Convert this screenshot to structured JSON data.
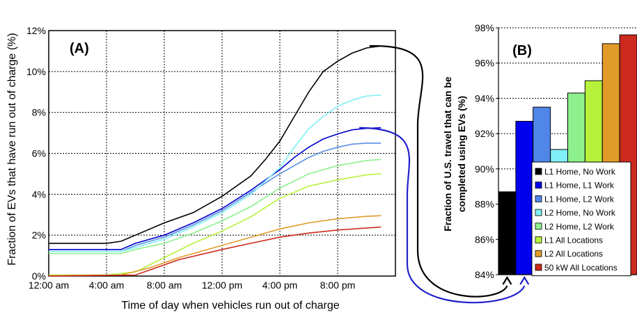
{
  "chart_data": [
    {
      "type": "line",
      "panel_label": "(A)",
      "xlabel": "Time of day when vehicles run out of charge",
      "ylabel": "Fraction of EVs that have run out of charge (%)",
      "x_tick_labels": [
        "12:00 am",
        "4:00 am",
        "8:00 am",
        "12:00 pm",
        "4:00 pm",
        "8:00 pm"
      ],
      "y_tick_labels": [
        "0%",
        "2%",
        "4%",
        "6%",
        "8%",
        "10%",
        "12%"
      ],
      "x_unit": "hour of day",
      "xlim": [
        0,
        24
      ],
      "ylim": [
        0,
        12
      ],
      "grid": true,
      "series": [
        {
          "name": "L1 Home, No Work",
          "color": "#000000",
          "points": [
            [
              0,
              1.6
            ],
            [
              4,
              1.6
            ],
            [
              5,
              1.7
            ],
            [
              6,
              2.0
            ],
            [
              8,
              2.6
            ],
            [
              10,
              3.1
            ],
            [
              12,
              3.9
            ],
            [
              14,
              4.9
            ],
            [
              15,
              5.7
            ],
            [
              16,
              6.6
            ],
            [
              17,
              7.8
            ],
            [
              18,
              9.0
            ],
            [
              19,
              10.0
            ],
            [
              20,
              10.5
            ],
            [
              21,
              10.9
            ],
            [
              22,
              11.15
            ],
            [
              23,
              11.25
            ]
          ]
        },
        {
          "name": "L1 Home, L1 Work",
          "color": "#0000cc",
          "points": [
            [
              0,
              1.3
            ],
            [
              5,
              1.3
            ],
            [
              6,
              1.6
            ],
            [
              8,
              2.0
            ],
            [
              10,
              2.6
            ],
            [
              12,
              3.3
            ],
            [
              14,
              4.2
            ],
            [
              16,
              5.2
            ],
            [
              17,
              5.8
            ],
            [
              18,
              6.3
            ],
            [
              19,
              6.7
            ],
            [
              20,
              6.95
            ],
            [
              21,
              7.15
            ],
            [
              22,
              7.22
            ],
            [
              23,
              7.25
            ]
          ]
        },
        {
          "name": "L1 Home, L2 Work",
          "color": "#5b8ee6",
          "points": [
            [
              0,
              1.2
            ],
            [
              5,
              1.2
            ],
            [
              6,
              1.5
            ],
            [
              8,
              1.9
            ],
            [
              10,
              2.5
            ],
            [
              12,
              3.2
            ],
            [
              14,
              4.1
            ],
            [
              16,
              5.0
            ],
            [
              17,
              5.4
            ],
            [
              18,
              5.8
            ],
            [
              19,
              6.1
            ],
            [
              20,
              6.3
            ],
            [
              21,
              6.45
            ],
            [
              22,
              6.5
            ],
            [
              23,
              6.5
            ]
          ]
        },
        {
          "name": "L2 Home, No Work",
          "color": "#7ff0f5",
          "points": [
            [
              0,
              1.2
            ],
            [
              5,
              1.2
            ],
            [
              6,
              1.4
            ],
            [
              8,
              1.8
            ],
            [
              10,
              2.4
            ],
            [
              12,
              3.1
            ],
            [
              14,
              4.0
            ],
            [
              16,
              5.3
            ],
            [
              17,
              6.3
            ],
            [
              18,
              7.2
            ],
            [
              19,
              7.8
            ],
            [
              20,
              8.3
            ],
            [
              21,
              8.6
            ],
            [
              22,
              8.8
            ],
            [
              23,
              8.85
            ]
          ]
        },
        {
          "name": "L2 Home, L2 Work",
          "color": "#8cf08c",
          "points": [
            [
              0,
              1.1
            ],
            [
              5,
              1.1
            ],
            [
              6,
              1.3
            ],
            [
              8,
              1.6
            ],
            [
              10,
              2.1
            ],
            [
              12,
              2.7
            ],
            [
              14,
              3.4
            ],
            [
              16,
              4.3
            ],
            [
              18,
              5.0
            ],
            [
              20,
              5.4
            ],
            [
              22,
              5.65
            ],
            [
              23,
              5.7
            ]
          ]
        },
        {
          "name": "L1 All Locations",
          "color": "#b6f23c",
          "points": [
            [
              0,
              0.05
            ],
            [
              4,
              0.05
            ],
            [
              6,
              0.2
            ],
            [
              8,
              0.9
            ],
            [
              10,
              1.6
            ],
            [
              12,
              2.2
            ],
            [
              14,
              2.9
            ],
            [
              16,
              3.8
            ],
            [
              18,
              4.4
            ],
            [
              20,
              4.7
            ],
            [
              22,
              4.95
            ],
            [
              23,
              5.0
            ]
          ]
        },
        {
          "name": "L2 All Locations",
          "color": "#e19b28",
          "points": [
            [
              0,
              0.02
            ],
            [
              5,
              0.05
            ],
            [
              7,
              0.4
            ],
            [
              9,
              0.9
            ],
            [
              12,
              1.5
            ],
            [
              14,
              1.9
            ],
            [
              16,
              2.3
            ],
            [
              18,
              2.6
            ],
            [
              20,
              2.8
            ],
            [
              22,
              2.92
            ],
            [
              23,
              2.95
            ]
          ]
        },
        {
          "name": "50 kW All Locations",
          "color": "#cc2a1e",
          "points": [
            [
              0,
              0.0
            ],
            [
              6,
              0.05
            ],
            [
              7,
              0.3
            ],
            [
              9,
              0.8
            ],
            [
              12,
              1.3
            ],
            [
              14,
              1.6
            ],
            [
              16,
              1.9
            ],
            [
              18,
              2.1
            ],
            [
              20,
              2.25
            ],
            [
              22,
              2.35
            ],
            [
              23,
              2.4
            ]
          ]
        }
      ]
    },
    {
      "type": "bar",
      "panel_label": "(B)",
      "ylabel": "Fraction of U.S. travel that can be completed using EVs (%)",
      "y_tick_labels": [
        "84%",
        "86%",
        "88%",
        "90%",
        "92%",
        "94%",
        "96%",
        "98%"
      ],
      "ylim": [
        84,
        98
      ],
      "categories": [
        "L1 Home, No Work",
        "L1 Home, L1 Work",
        "L1 Home, L2 Work",
        "L2 Home, No Work",
        "L2 Home, L2 Work",
        "L1 All Locations",
        "L2 All Locations",
        "50 kW All Locations"
      ],
      "values": [
        88.7,
        92.7,
        93.5,
        91.1,
        94.3,
        95.0,
        97.1,
        97.6
      ],
      "colors": [
        "#000000",
        "#0000ee",
        "#4f86e8",
        "#7ff0f5",
        "#8cf08c",
        "#b6f23c",
        "#e19b28",
        "#cc2a1e"
      ],
      "legend": [
        "L1 Home, No Work",
        "L1 Home, L1 Work",
        "L1 Home, L2 Work",
        "L2 Home, No Work",
        "L2 Home, L2 Work",
        "L1 All Locations",
        "L2 All Locations",
        "50 kW All Locations"
      ],
      "legend_position": "right"
    }
  ]
}
